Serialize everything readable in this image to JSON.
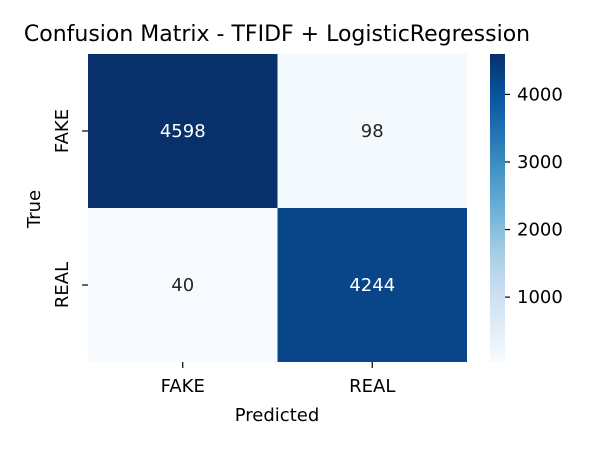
{
  "chart_data": {
    "type": "heatmap",
    "title": "Confusion Matrix - TFIDF + LogisticRegression",
    "xlabel": "Predicted",
    "ylabel": "True",
    "x_categories": [
      "FAKE",
      "REAL"
    ],
    "y_categories": [
      "FAKE",
      "REAL"
    ],
    "values": [
      [
        4598,
        98
      ],
      [
        40,
        4244
      ]
    ],
    "colormap": "Blues",
    "colorbar": {
      "min": 40,
      "max": 4598,
      "ticks": [
        1000,
        2000,
        3000,
        4000
      ]
    },
    "colors": {
      "low": "#f7fbff",
      "high": "#08306b",
      "text_dark": "#262626",
      "text_light": "#ffffff"
    }
  }
}
